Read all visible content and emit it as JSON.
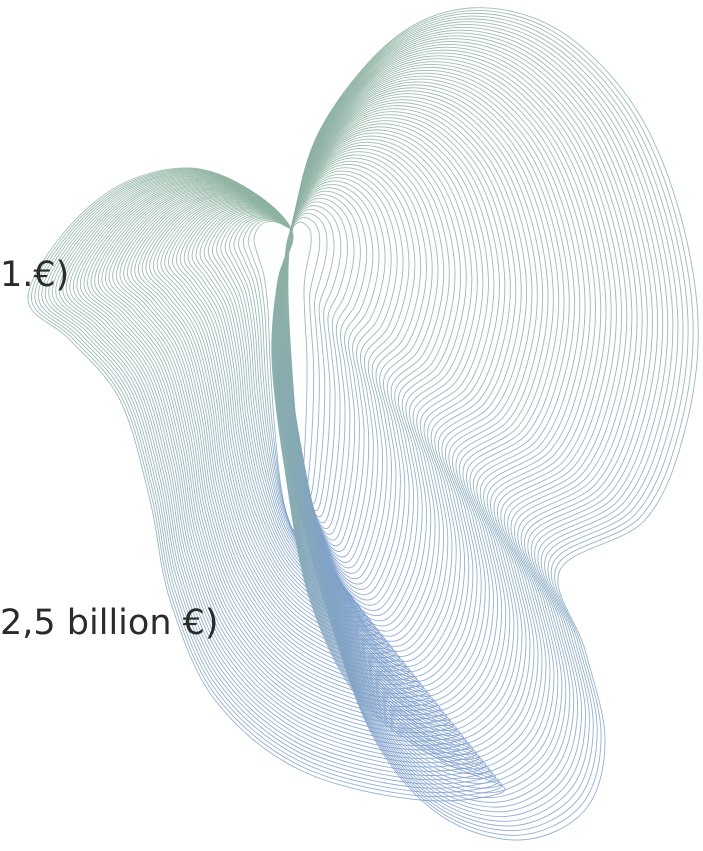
{
  "labels": {
    "upper_fragment": "1.€)",
    "lower_fragment": "2,5 billion €)"
  },
  "decoration": {
    "name": "wireframe-heart-shape",
    "line_color_top": "#8fb3a0",
    "line_color_bottom": "#7f9fd0"
  }
}
